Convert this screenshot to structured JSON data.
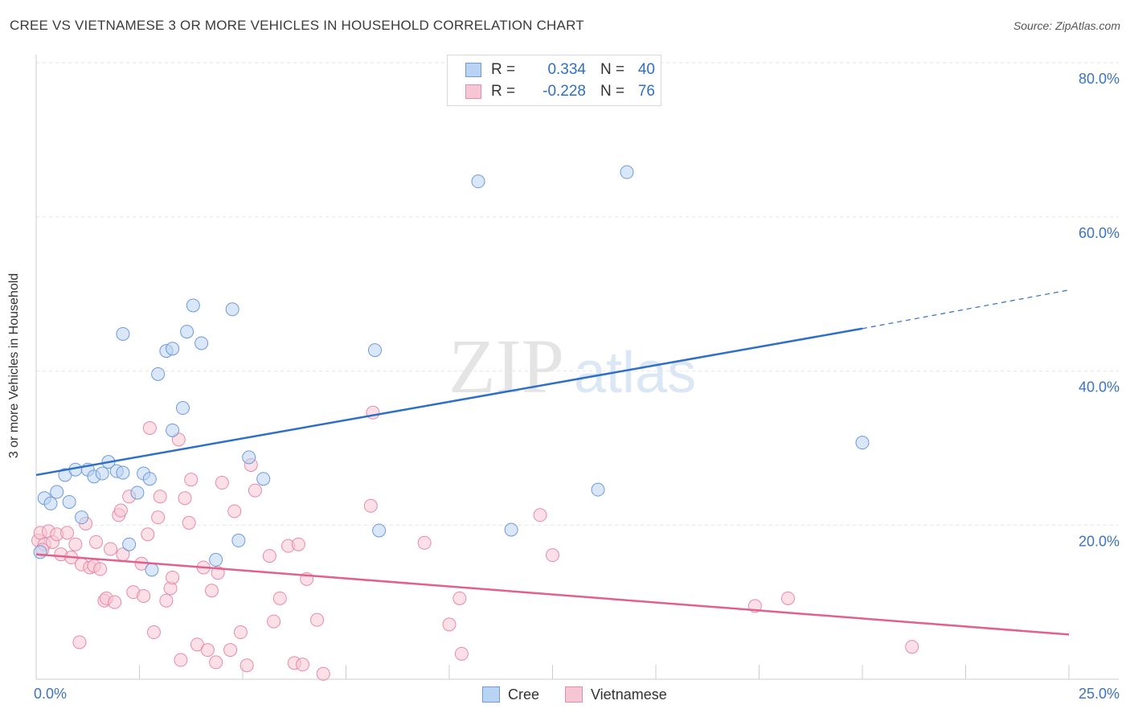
{
  "title": "CREE VS VIETNAMESE 3 OR MORE VEHICLES IN HOUSEHOLD CORRELATION CHART",
  "source": "Source: ZipAtlas.com",
  "watermark": {
    "zip": "ZIP",
    "atlas": "atlas"
  },
  "legend": {
    "rows": [
      {
        "r_label": "R =",
        "r_value": "0.334",
        "n_label": "N =",
        "n_value": "40",
        "color_fill": "#b9d3f3",
        "color_stroke": "#6e9bd8"
      },
      {
        "r_label": "R =",
        "r_value": "-0.228",
        "n_label": "N =",
        "n_value": "76",
        "color_fill": "#f7c6d4",
        "color_stroke": "#e88aa8"
      }
    ]
  },
  "bottom_legend": [
    {
      "label": "Cree",
      "color_fill": "#b9d3f3",
      "color_stroke": "#6e9bd8"
    },
    {
      "label": "Vietnamese",
      "color_fill": "#f7c6d4",
      "color_stroke": "#e88aa8"
    }
  ],
  "chart_data": {
    "type": "scatter",
    "title": "CREE VS VIETNAMESE 3 OR MORE VEHICLES IN HOUSEHOLD CORRELATION CHART",
    "xlabel": "",
    "ylabel": "3 or more Vehicles in Household",
    "xlim": [
      0,
      25
    ],
    "ylim": [
      0,
      80
    ],
    "x_tick_labels": [
      "0.0%",
      "25.0%"
    ],
    "y_ticks": [
      20,
      40,
      60,
      80
    ],
    "y_tick_labels": [
      "20.0%",
      "40.0%",
      "60.0%",
      "80.0%"
    ],
    "x_minor_ticks": [
      0,
      2.5,
      5,
      7.5,
      10,
      12.5,
      15,
      17.5,
      20,
      22.5,
      25
    ],
    "grid": true,
    "legend_position": "top-center",
    "series": [
      {
        "name": "Cree",
        "color": "#6e9bd8",
        "fill": "#b9d3f3",
        "trend": {
          "x0": 0,
          "y0": 26.5,
          "x1": 20,
          "y1": 45.5,
          "dash_to_x": 25,
          "dash_to_y": 50.5,
          "color": "#2f6fc6"
        },
        "points": [
          [
            0.1,
            16.5
          ],
          [
            0.2,
            23.5
          ],
          [
            0.35,
            22.8
          ],
          [
            0.5,
            24.3
          ],
          [
            0.7,
            26.5
          ],
          [
            0.8,
            23
          ],
          [
            0.95,
            27.2
          ],
          [
            1.1,
            21
          ],
          [
            1.25,
            27.2
          ],
          [
            1.4,
            26.3
          ],
          [
            1.6,
            26.7
          ],
          [
            1.75,
            28.2
          ],
          [
            1.95,
            27
          ],
          [
            2.1,
            44.8
          ],
          [
            2.25,
            17.5
          ],
          [
            2.45,
            24.2
          ],
          [
            2.6,
            26.7
          ],
          [
            2.75,
            26
          ],
          [
            2.8,
            14.2
          ],
          [
            2.95,
            39.6
          ],
          [
            3.15,
            42.6
          ],
          [
            3.3,
            42.9
          ],
          [
            3.3,
            32.3
          ],
          [
            3.55,
            35.2
          ],
          [
            3.65,
            45.1
          ],
          [
            3.8,
            48.5
          ],
          [
            4.0,
            43.6
          ],
          [
            4.35,
            15.5
          ],
          [
            4.75,
            48.0
          ],
          [
            4.9,
            18
          ],
          [
            5.15,
            28.8
          ],
          [
            5.5,
            26
          ],
          [
            8.2,
            42.7
          ],
          [
            8.3,
            19.3
          ],
          [
            10.7,
            64.6
          ],
          [
            11.5,
            19.4
          ],
          [
            13.6,
            24.6
          ],
          [
            14.3,
            65.8
          ],
          [
            20.0,
            30.7
          ],
          [
            2.1,
            26.8
          ]
        ]
      },
      {
        "name": "Vietnamese",
        "color": "#e88aa8",
        "fill": "#f7c6d4",
        "trend": {
          "x0": 0,
          "y0": 16.2,
          "x1": 25,
          "y1": 5.8,
          "color": "#e0608e"
        },
        "points": [
          [
            0.05,
            18
          ],
          [
            0.1,
            19
          ],
          [
            0.2,
            17.5
          ],
          [
            0.3,
            19.2
          ],
          [
            0.4,
            17.8
          ],
          [
            0.5,
            18.8
          ],
          [
            0.6,
            16.2
          ],
          [
            0.75,
            19
          ],
          [
            0.85,
            15.8
          ],
          [
            0.95,
            17.5
          ],
          [
            1.05,
            4.8
          ],
          [
            1.1,
            14.9
          ],
          [
            1.2,
            20.2
          ],
          [
            1.3,
            14.5
          ],
          [
            1.4,
            14.7
          ],
          [
            1.45,
            17.8
          ],
          [
            1.55,
            14.3
          ],
          [
            1.65,
            10.2
          ],
          [
            1.7,
            10.5
          ],
          [
            1.8,
            16.9
          ],
          [
            1.9,
            10
          ],
          [
            2.0,
            21.3
          ],
          [
            2.05,
            21.9
          ],
          [
            2.1,
            16.2
          ],
          [
            2.25,
            23.7
          ],
          [
            2.35,
            11.3
          ],
          [
            2.55,
            15
          ],
          [
            2.6,
            10.8
          ],
          [
            2.7,
            18.8
          ],
          [
            2.75,
            32.6
          ],
          [
            2.85,
            6.1
          ],
          [
            2.95,
            21
          ],
          [
            3.0,
            23.7
          ],
          [
            3.15,
            10.2
          ],
          [
            3.25,
            11.8
          ],
          [
            3.3,
            13.2
          ],
          [
            3.45,
            31.1
          ],
          [
            3.5,
            2.5
          ],
          [
            3.6,
            23.5
          ],
          [
            3.7,
            20.3
          ],
          [
            3.75,
            25.9
          ],
          [
            3.9,
            4.5
          ],
          [
            4.05,
            14.5
          ],
          [
            4.15,
            3.8
          ],
          [
            4.25,
            11.5
          ],
          [
            4.35,
            2.2
          ],
          [
            4.4,
            13.8
          ],
          [
            4.5,
            25.5
          ],
          [
            4.7,
            3.8
          ],
          [
            4.8,
            21.8
          ],
          [
            4.95,
            6.1
          ],
          [
            5.1,
            1.8
          ],
          [
            5.2,
            27.8
          ],
          [
            5.3,
            24.5
          ],
          [
            5.65,
            16
          ],
          [
            5.75,
            7.5
          ],
          [
            5.9,
            10.5
          ],
          [
            6.1,
            17.3
          ],
          [
            6.25,
            2.1
          ],
          [
            6.35,
            17.5
          ],
          [
            6.45,
            1.9
          ],
          [
            6.55,
            13
          ],
          [
            6.8,
            7.7
          ],
          [
            6.95,
            0.7
          ],
          [
            8.1,
            22.5
          ],
          [
            8.15,
            34.6
          ],
          [
            9.4,
            17.7
          ],
          [
            10.0,
            7.1
          ],
          [
            10.25,
            10.5
          ],
          [
            10.3,
            3.3
          ],
          [
            12.2,
            21.3
          ],
          [
            12.5,
            16.1
          ],
          [
            17.4,
            9.5
          ],
          [
            18.2,
            10.5
          ],
          [
            21.2,
            4.2
          ],
          [
            0.15,
            16.8
          ]
        ]
      }
    ]
  }
}
